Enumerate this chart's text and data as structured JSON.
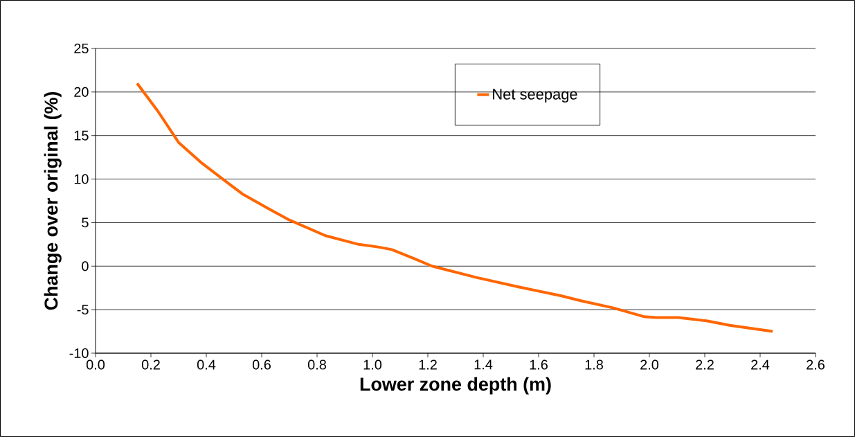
{
  "chart_data": {
    "type": "line",
    "xlabel": "Lower zone depth (m)",
    "ylabel": "Change over original (%)",
    "x": [
      0.15,
      0.225,
      0.3,
      0.385,
      0.48,
      0.53,
      0.63,
      0.7,
      0.83,
      0.95,
      1.02,
      1.07,
      1.155,
      1.215,
      1.375,
      1.53,
      1.68,
      1.755,
      1.87,
      1.98,
      2.025,
      2.105,
      2.21,
      2.29,
      2.445
    ],
    "series": [
      {
        "name": "Net seepage",
        "color": "#ff6600",
        "values": [
          21,
          17.8,
          14.2,
          11.8,
          9.5,
          8.3,
          6.5,
          5.3,
          3.5,
          2.5,
          2.2,
          1.9,
          0.8,
          0,
          -1.3,
          -2.4,
          -3.4,
          -4.0,
          -4.8,
          -5.8,
          -5.9,
          -5.9,
          -6.3,
          -6.8,
          -7.5
        ]
      }
    ],
    "xlim": [
      0,
      2.6
    ],
    "ylim": [
      -10,
      25
    ],
    "xticks": [
      {
        "value": 0,
        "label": "0.0"
      },
      {
        "value": 0.2,
        "label": "0.2"
      },
      {
        "value": 0.4,
        "label": "0.4"
      },
      {
        "value": 0.6,
        "label": "0.6"
      },
      {
        "value": 0.8,
        "label": "0.8"
      },
      {
        "value": 1.0,
        "label": "1.0"
      },
      {
        "value": 1.2,
        "label": "1.2"
      },
      {
        "value": 1.4,
        "label": "1.4"
      },
      {
        "value": 1.6,
        "label": "1.6"
      },
      {
        "value": 1.8,
        "label": "1.8"
      },
      {
        "value": 2.0,
        "label": "2.0"
      },
      {
        "value": 2.2,
        "label": "2.2"
      },
      {
        "value": 2.4,
        "label": "2.4"
      },
      {
        "value": 2.6,
        "label": "2.6"
      }
    ],
    "yticks": [
      -10,
      -5,
      0,
      5,
      10,
      15,
      20,
      25
    ],
    "grid": "y",
    "legend": "top",
    "marker": "none",
    "line_style": "solid"
  }
}
